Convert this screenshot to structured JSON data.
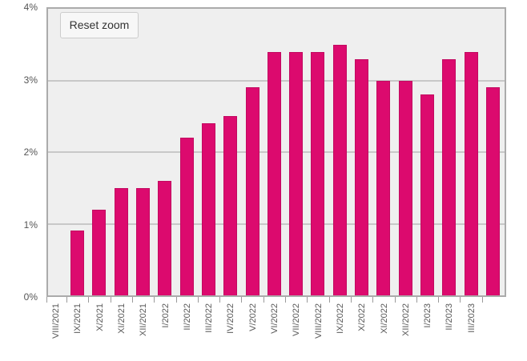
{
  "chart": {
    "reset_button_label": "Reset zoom",
    "colors": {
      "bar": "#dc0a6e",
      "bar_border": "#c20960",
      "plot_background": "#efefef",
      "gridline": "#c8c8c8",
      "axis_border": "#ababab",
      "tick": "#9a9a9a",
      "label_text": "#595959",
      "button_text": "#333333",
      "page_background": "#ffffff"
    }
  },
  "chart_data": {
    "type": "bar",
    "title": "",
    "xlabel": "",
    "ylabel": "",
    "categories": [
      "VIII/2021",
      "IX/2021",
      "X/2021",
      "XI/2021",
      "XII/2021",
      "I/2022",
      "II/2022",
      "III/2022",
      "IV/2022",
      "V/2022",
      "VI/2022",
      "VII/2022",
      "VIII/2022",
      "IX/2022",
      "X/2022",
      "XI/2022",
      "XII/2022",
      "I/2023",
      "II/2023",
      "III/2023"
    ],
    "values": [
      0.9,
      1.2,
      1.5,
      1.5,
      1.6,
      2.2,
      2.4,
      2.5,
      2.9,
      3.4,
      3.4,
      3.4,
      3.5,
      3.3,
      3.0,
      3.0,
      2.8,
      3.3,
      3.4,
      2.9
    ],
    "value_unit": "%",
    "ylim": [
      0,
      4
    ],
    "y_tick_labels": [
      "0%",
      "1%",
      "2%",
      "3%",
      "4%"
    ],
    "y_tick_values": [
      0,
      1,
      2,
      3,
      4
    ],
    "grid": true,
    "legend": "none",
    "x_labels_rotated": true,
    "zoomed": true
  }
}
